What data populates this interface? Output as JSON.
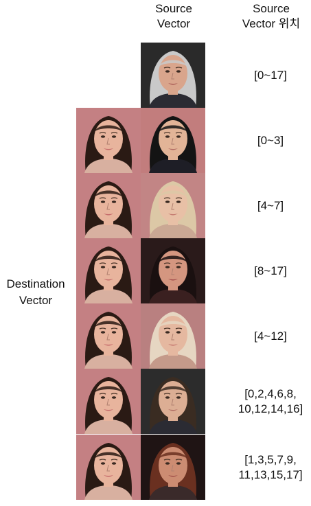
{
  "headers": {
    "source": [
      "Source",
      "Vector"
    ],
    "position": [
      "Source",
      "Vector 위치"
    ]
  },
  "side_label": [
    "Destination",
    "Vector"
  ],
  "rows": [
    {
      "label_lines": [
        "[0~17]"
      ],
      "dest": false,
      "src": {
        "bg": "#2a2a2a",
        "skin": "#d9a58c",
        "hair": "#c9c9c9",
        "clothes": "#2b2b33",
        "lips": "#a85b55"
      }
    },
    {
      "label_lines": [
        "[0~3]"
      ],
      "dest": true,
      "src": {
        "bg": "#c27d7d",
        "skin": "#e2b497",
        "hair": "#141414",
        "clothes": "#1e1e26",
        "lips": "#b16a62"
      }
    },
    {
      "label_lines": [
        "[4~7]"
      ],
      "dest": true,
      "src": {
        "bg": "#c28585",
        "skin": "#e8c0a6",
        "hair": "#dcc8a6",
        "clothes": "#caa894",
        "lips": "#c47a70"
      }
    },
    {
      "label_lines": [
        "[8~17]"
      ],
      "dest": true,
      "src": {
        "bg": "#2a1a1a",
        "skin": "#d49680",
        "hair": "#1a1010",
        "clothes": "#3a2020",
        "lips": "#a14a4a"
      }
    },
    {
      "label_lines": [
        "[4~12]"
      ],
      "dest": true,
      "src": {
        "bg": "#b98080",
        "skin": "#e5b8a0",
        "hair": "#e6d6c2",
        "clothes": "#c49a8a",
        "lips": "#c2746c"
      }
    },
    {
      "label_lines": [
        "[0,2,4,6,8,",
        "10,12,14,16]"
      ],
      "dest": true,
      "src": {
        "bg": "#2c2c2c",
        "skin": "#dcae94",
        "hair": "#3a2c22",
        "clothes": "#2b2b33",
        "lips": "#ae6a62"
      }
    },
    {
      "label_lines": [
        "[1,3,5,7,9,",
        "11,13,15,17]"
      ],
      "dest": true,
      "src": {
        "bg": "#1f1414",
        "skin": "#cc8c72",
        "hair": "#6a3020",
        "clothes": "#3a2a2a",
        "lips": "#9f4e48"
      }
    }
  ],
  "destination_face": {
    "bg": "#c48083",
    "skin": "#e8b49d",
    "hair": "#2a1a14",
    "clothes": "#d8b0a0",
    "lips": "#c46a6a"
  }
}
